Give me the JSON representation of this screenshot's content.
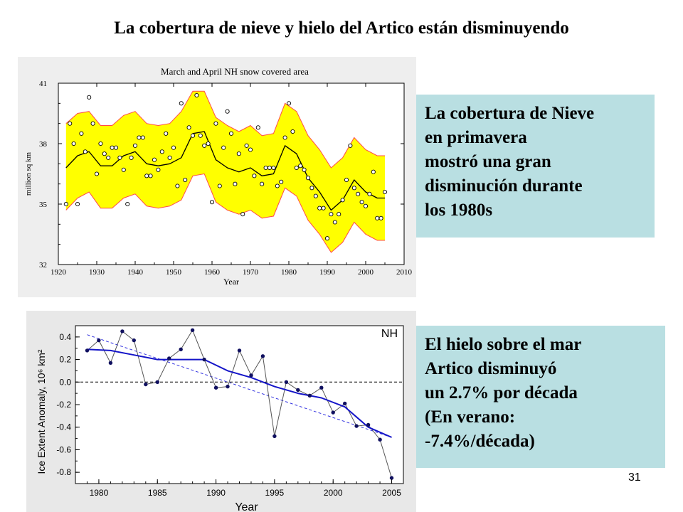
{
  "page": {
    "title": "La cobertura de nieve y hielo del Artico están disminuyendo",
    "page_number": "31"
  },
  "panels": {
    "snow": [
      "La cobertura de Nieve",
      "en primavera",
      "mostró una gran",
      "disminución durante",
      "los 1980s"
    ],
    "ice": [
      "El hielo sobre el mar",
      "Artico disminuyó",
      "un 2.7% por década",
      "(En verano:",
      "-7.4%/década)"
    ]
  },
  "colors": {
    "band_fill": "#ffff00",
    "band_edge": "#ff4b4b",
    "panel_bg": "#b9dfe2",
    "ice_line": "#1414c8",
    "ice_trend": "#3434e0"
  },
  "chart_data": [
    {
      "type": "scatter",
      "title": "March and April NH snow covered area",
      "xlabel": "Year",
      "ylabel": "million sq km",
      "xlim": [
        1920,
        2010
      ],
      "ylim": [
        32,
        41
      ],
      "xticks": [
        1920,
        1930,
        1940,
        1950,
        1960,
        1970,
        1980,
        1990,
        2000,
        2010
      ],
      "yticks": [
        32,
        35,
        38,
        41
      ],
      "grid": false,
      "series": [
        {
          "role": "observations",
          "x": [
            1922,
            1923,
            1924,
            1925,
            1926,
            1927,
            1928,
            1929,
            1930,
            1931,
            1932,
            1933,
            1934,
            1935,
            1936,
            1937,
            1938,
            1939,
            1940,
            1941,
            1942,
            1943,
            1944,
            1945,
            1946,
            1947,
            1948,
            1949,
            1950,
            1951,
            1952,
            1953,
            1954,
            1955,
            1956,
            1957,
            1958,
            1959,
            1960,
            1961,
            1962,
            1963,
            1964,
            1965,
            1966,
            1967,
            1968,
            1969,
            1970,
            1971,
            1972,
            1973,
            1974,
            1975,
            1976,
            1977,
            1978,
            1979,
            1980,
            1981,
            1982,
            1983,
            1984,
            1985,
            1986,
            1987,
            1988,
            1989,
            1990,
            1991,
            1992,
            1993,
            1994,
            1995,
            1996,
            1997,
            1998,
            1999,
            2000,
            2001,
            2002,
            2003,
            2004,
            2005
          ],
          "y": [
            35.0,
            39.0,
            38.0,
            35.0,
            38.5,
            37.6,
            40.3,
            39.0,
            36.5,
            38.0,
            37.5,
            37.3,
            37.8,
            37.8,
            37.3,
            36.7,
            35.0,
            37.3,
            37.9,
            38.3,
            38.3,
            36.4,
            36.4,
            37.2,
            36.7,
            37.6,
            38.5,
            37.3,
            37.8,
            35.9,
            40.0,
            36.2,
            38.8,
            38.4,
            40.4,
            38.4,
            37.9,
            38.0,
            35.1,
            39.0,
            35.9,
            37.8,
            39.6,
            38.5,
            36.0,
            37.5,
            34.5,
            37.9,
            37.7,
            36.4,
            38.8,
            36.0,
            36.8,
            36.8,
            36.8,
            35.9,
            36.1,
            38.3,
            40.0,
            38.6,
            36.8,
            36.9,
            36.7,
            36.3,
            35.8,
            35.4,
            34.8,
            34.8,
            33.3,
            34.5,
            34.1,
            34.5,
            35.2,
            36.2,
            37.9,
            35.8,
            35.5,
            35.1,
            34.9,
            35.5,
            36.6,
            34.3,
            34.3,
            35.6
          ]
        },
        {
          "role": "smoothed",
          "x": [
            1922,
            1925,
            1928,
            1931,
            1934,
            1937,
            1940,
            1943,
            1946,
            1949,
            1952,
            1955,
            1958,
            1961,
            1964,
            1967,
            1970,
            1973,
            1976,
            1979,
            1982,
            1985,
            1988,
            1991,
            1994,
            1997,
            2000,
            2003,
            2005
          ],
          "y": [
            36.8,
            37.4,
            37.6,
            36.9,
            36.9,
            37.4,
            37.6,
            37.0,
            36.9,
            37.0,
            37.3,
            38.5,
            38.6,
            37.2,
            36.8,
            36.6,
            36.8,
            36.4,
            36.5,
            37.9,
            37.5,
            36.3,
            35.6,
            34.7,
            35.2,
            36.2,
            35.6,
            35.3,
            35.3
          ]
        },
        {
          "role": "band_upper",
          "x": [
            1922,
            1925,
            1928,
            1931,
            1934,
            1937,
            1940,
            1943,
            1946,
            1949,
            1952,
            1955,
            1958,
            1961,
            1964,
            1967,
            1970,
            1973,
            1976,
            1979,
            1982,
            1985,
            1988,
            1991,
            1994,
            1997,
            2000,
            2003,
            2005
          ],
          "y": [
            39.0,
            39.5,
            39.6,
            38.9,
            38.9,
            39.4,
            39.6,
            39.0,
            38.9,
            39.0,
            39.6,
            40.6,
            40.6,
            39.3,
            38.9,
            38.6,
            38.9,
            38.4,
            38.5,
            40.0,
            39.6,
            38.4,
            37.7,
            36.8,
            37.3,
            38.3,
            37.7,
            37.4,
            37.4
          ]
        },
        {
          "role": "band_lower",
          "x": [
            1922,
            1925,
            1928,
            1931,
            1934,
            1937,
            1940,
            1943,
            1946,
            1949,
            1952,
            1955,
            1958,
            1961,
            1964,
            1967,
            1970,
            1973,
            1976,
            1979,
            1982,
            1985,
            1988,
            1991,
            1994,
            1997,
            2000,
            2003,
            2005
          ],
          "y": [
            34.7,
            35.3,
            35.6,
            34.8,
            34.8,
            35.3,
            35.5,
            34.9,
            34.8,
            34.9,
            35.2,
            36.4,
            36.5,
            35.1,
            34.7,
            34.5,
            34.7,
            34.3,
            34.4,
            35.8,
            35.4,
            34.2,
            33.5,
            32.6,
            33.1,
            34.1,
            33.5,
            33.2,
            33.2
          ]
        }
      ]
    },
    {
      "type": "line",
      "title": "NH",
      "xlabel": "Year",
      "ylabel": "Ice Extent Anomaly, 10⁶ km²",
      "xlim": [
        1978,
        2006
      ],
      "ylim": [
        -0.9,
        0.5
      ],
      "xticks": [
        1980,
        1985,
        1990,
        1995,
        2000,
        2005
      ],
      "yticks": [
        0.4,
        0.2,
        0.0,
        -0.2,
        -0.4,
        -0.6,
        -0.8
      ],
      "grid": false,
      "series": [
        {
          "role": "annual",
          "x": [
            1979,
            1980,
            1981,
            1982,
            1983,
            1984,
            1985,
            1986,
            1987,
            1988,
            1989,
            1990,
            1991,
            1992,
            1993,
            1994,
            1995,
            1996,
            1997,
            1998,
            1999,
            2000,
            2001,
            2002,
            2003,
            2004,
            2005
          ],
          "y": [
            0.28,
            0.37,
            0.17,
            0.45,
            0.37,
            -0.02,
            0.0,
            0.21,
            0.29,
            0.46,
            0.2,
            -0.05,
            -0.04,
            0.28,
            0.06,
            0.23,
            -0.48,
            0.0,
            -0.07,
            -0.12,
            -0.05,
            -0.27,
            -0.19,
            -0.39,
            -0.38,
            -0.51,
            -0.85
          ]
        },
        {
          "role": "smoothed",
          "x": [
            1979,
            1981,
            1983,
            1985,
            1987,
            1989,
            1991,
            1993,
            1995,
            1997,
            1999,
            2001,
            2003,
            2005
          ],
          "y": [
            0.29,
            0.28,
            0.24,
            0.2,
            0.2,
            0.2,
            0.1,
            0.04,
            -0.04,
            -0.1,
            -0.14,
            -0.22,
            -0.4,
            -0.49
          ]
        },
        {
          "role": "linear_trend",
          "x": [
            1979,
            2005
          ],
          "y": [
            0.42,
            -0.49
          ]
        },
        {
          "role": "zero_reference",
          "x": [
            1978,
            2006
          ],
          "y": [
            0.0,
            0.0
          ]
        }
      ]
    }
  ]
}
